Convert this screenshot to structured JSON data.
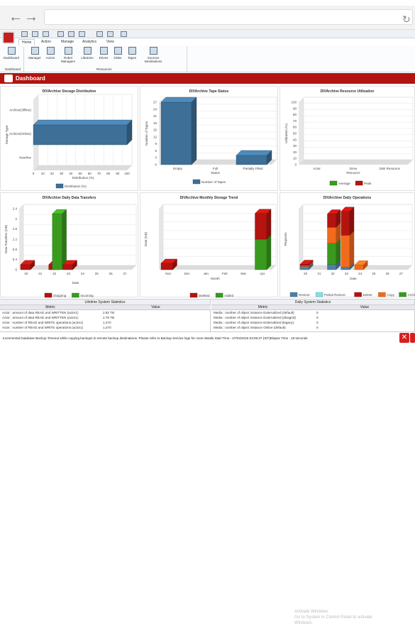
{
  "app": {
    "ribbon_tabs": [
      "Home",
      "Action",
      "Manage",
      "Analytics",
      "View"
    ]
  },
  "ribbon": {
    "buttons": [
      "Dashboard",
      "Manager",
      "Actors",
      "Robot Managers",
      "Libraries",
      "Drives",
      "Disks",
      "Tapes",
      "Sources Destinations"
    ],
    "groups": [
      "Dashboard",
      "Resources"
    ]
  },
  "header": {
    "title": "Dashboard"
  },
  "charts": {
    "storage": {
      "title": "DIVArchive Storage Distribution",
      "xlabel": "Distribution (%)",
      "ylabel": "Storage Type",
      "legend": "Distribution (%)"
    },
    "tape": {
      "title": "DIVArchive Tape Status",
      "xlabel": "Status",
      "ylabel": "Number of Tapes",
      "legend": "Number of Tapes"
    },
    "resource": {
      "title": "DIVArchive Resource Utilization",
      "xlabel": "Resource",
      "ylabel": "Utilization (%)",
      "legend_avg": "Average",
      "legend_peak": "Peak"
    },
    "transfers": {
      "title": "DIVArchive Daily Data Transfers",
      "xlabel": "Date",
      "ylabel": "Data Transfers (GB)",
      "legend_out": "Outgoing",
      "legend_in": "Incoming"
    },
    "monthly": {
      "title": "DIVArchive Monthly Storage Trend",
      "xlabel": "Month",
      "ylabel": "Data (GB)",
      "legend_del": "Deleted",
      "legend_add": "Added"
    },
    "ops": {
      "title": "DIVArchive Daily Operations",
      "xlabel": "Date",
      "ylabel": "Requests",
      "legends": [
        "Restore",
        "Partial Restore",
        "Delete",
        "Copy",
        "Archive"
      ]
    }
  },
  "chart_data": [
    {
      "type": "bar",
      "title": "DIVArchive Storage Distribution",
      "categories": [
        "Nearline",
        "Archive(Online)",
        "Archive(Offline)"
      ],
      "values": [
        0,
        100,
        0
      ],
      "xlim": [
        0,
        100
      ],
      "xticks": [
        "0",
        "10",
        "20",
        "30",
        "40",
        "50",
        "60",
        "70",
        "80",
        "90",
        "100"
      ],
      "xlabel": "Distribution (%)",
      "ylabel": "Storage Type"
    },
    {
      "type": "bar",
      "title": "DIVArchive Tape Status",
      "categories": [
        "Empty",
        "Full",
        "Partially Filled"
      ],
      "values": [
        27,
        0,
        4
      ],
      "ylim": [
        0,
        27
      ],
      "yticks": [
        "0",
        "3",
        "6",
        "9",
        "12",
        "15",
        "18",
        "21",
        "24",
        "27"
      ],
      "xlabel": "Status",
      "ylabel": "Number of Tapes"
    },
    {
      "type": "bar",
      "title": "DIVArchive Resource Utilization",
      "categories": [
        "Actor",
        "Drive",
        "Disk Resource"
      ],
      "series": [
        {
          "name": "Average",
          "values": [
            0,
            0,
            0
          ]
        },
        {
          "name": "Peak",
          "values": [
            0,
            0,
            0
          ]
        }
      ],
      "ylim": [
        0,
        100
      ],
      "yticks": [
        "0",
        "10",
        "20",
        "30",
        "40",
        "50",
        "60",
        "70",
        "80",
        "90",
        "100"
      ]
    },
    {
      "type": "bar",
      "title": "DIVArchive Daily Data Transfers",
      "categories": [
        "20",
        "21",
        "22",
        "23",
        "24",
        "25",
        "26",
        "27"
      ],
      "series": [
        {
          "name": "Outgoing",
          "values": [
            0.2,
            0,
            0.2,
            0.2,
            0,
            0,
            0,
            0
          ]
        },
        {
          "name": "Incoming",
          "values": [
            0,
            0,
            2.2,
            0,
            0,
            0,
            0,
            0
          ]
        }
      ],
      "ylim": [
        0,
        2.4
      ],
      "yticks": [
        "0",
        "0.4",
        "0.8",
        "1.2",
        "1.6",
        "2",
        "2.4"
      ]
    },
    {
      "type": "bar",
      "title": "DIVArchive Monthly Storage Trend",
      "categories": [
        "Nov",
        "Dec",
        "Jan",
        "Feb",
        "Mar",
        "Apr"
      ],
      "series": [
        {
          "name": "Deleted",
          "values": [
            0.4,
            0,
            0,
            0,
            0,
            1.6
          ]
        },
        {
          "name": "Added",
          "values": [
            0,
            0,
            0,
            0,
            0,
            1.9
          ]
        }
      ],
      "ylim": [
        0,
        3.8
      ]
    },
    {
      "type": "bar",
      "title": "DIVArchive Daily Operations",
      "categories": [
        "20",
        "21",
        "22",
        "23",
        "24",
        "25",
        "26",
        "27"
      ],
      "series": [
        {
          "name": "Restore",
          "values": [
            6,
            0,
            10,
            5,
            0,
            0,
            0,
            0
          ]
        },
        {
          "name": "Partial Restore",
          "values": [
            0,
            0,
            0,
            0,
            0,
            0,
            0,
            0
          ]
        },
        {
          "name": "Delete",
          "values": [
            2,
            0,
            25,
            45,
            0,
            0,
            0,
            0
          ]
        },
        {
          "name": "Copy",
          "values": [
            2,
            0,
            30,
            60,
            9,
            0,
            0,
            0
          ]
        },
        {
          "name": "Archive",
          "values": [
            0,
            0,
            40,
            0,
            0,
            0,
            0,
            0
          ]
        }
      ],
      "ylim": [
        0,
        115
      ]
    }
  ],
  "stats": {
    "lifetime": {
      "title": "Lifetime System Statistics",
      "col_metric": "Metric",
      "col_value": "Value",
      "rows": [
        [
          "Actor : amount of data READ and WRITTEN (actor1)",
          "2.82 TB"
        ],
        [
          "Actor : amount of data READ and WRITTEN (actor1)",
          "2.76 TB"
        ],
        [
          "Actor : number of READ and WRITE operations (actor1)",
          "1,470"
        ],
        [
          "Actor : number of READ and WRITE operations (actor1)",
          "1,470"
        ]
      ]
    },
    "daily": {
      "title": "Daily System Statistics",
      "col_metric": "Metric",
      "col_value": "Value",
      "rows": [
        [
          "Media : number of object instance  Externalized (default)",
          "0"
        ],
        [
          "Media : number of object instance  Externalized (divagrid)",
          "0"
        ],
        [
          "Media : number of object instance  Externalized (legacy)",
          "0"
        ],
        [
          "Media : number of object instance  Online (default)",
          "0"
        ]
      ]
    }
  },
  "status_text": "Incremental Database Backup Timeout while copying backups to remote backup destinations. Please refer to Backup Service logs for more details Start Time : 27/04/2015 03:06:37 (IST)Elapse Time : 18 seconds",
  "watermark": {
    "line1": "Activate Windows",
    "line2": "Go to System in Control Panel to activate",
    "line3": "Windows."
  }
}
